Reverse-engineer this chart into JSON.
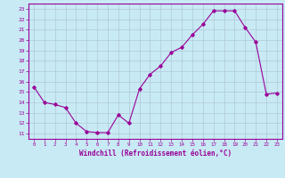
{
  "x": [
    0,
    1,
    2,
    3,
    4,
    5,
    6,
    7,
    8,
    9,
    10,
    11,
    12,
    13,
    14,
    15,
    16,
    17,
    18,
    19,
    20,
    21,
    22,
    23
  ],
  "y": [
    15.5,
    14.0,
    13.8,
    13.5,
    12.0,
    11.2,
    11.1,
    11.1,
    12.8,
    12.0,
    15.3,
    16.7,
    17.5,
    18.8,
    19.3,
    20.5,
    21.5,
    22.8,
    22.8,
    22.8,
    21.2,
    19.8,
    14.8,
    14.9
  ],
  "line_color": "#990099",
  "bg_color": "#c8eaf4",
  "grid_color": "#b0c8d8",
  "xlabel": "Windchill (Refroidissement éolien,°C)",
  "ylabel_ticks": [
    11,
    12,
    13,
    14,
    15,
    16,
    17,
    18,
    19,
    20,
    21,
    22,
    23
  ],
  "xlim": [
    -0.5,
    23.5
  ],
  "ylim": [
    10.5,
    23.5
  ],
  "marker": "D",
  "markersize": 1.8,
  "linewidth": 0.8
}
